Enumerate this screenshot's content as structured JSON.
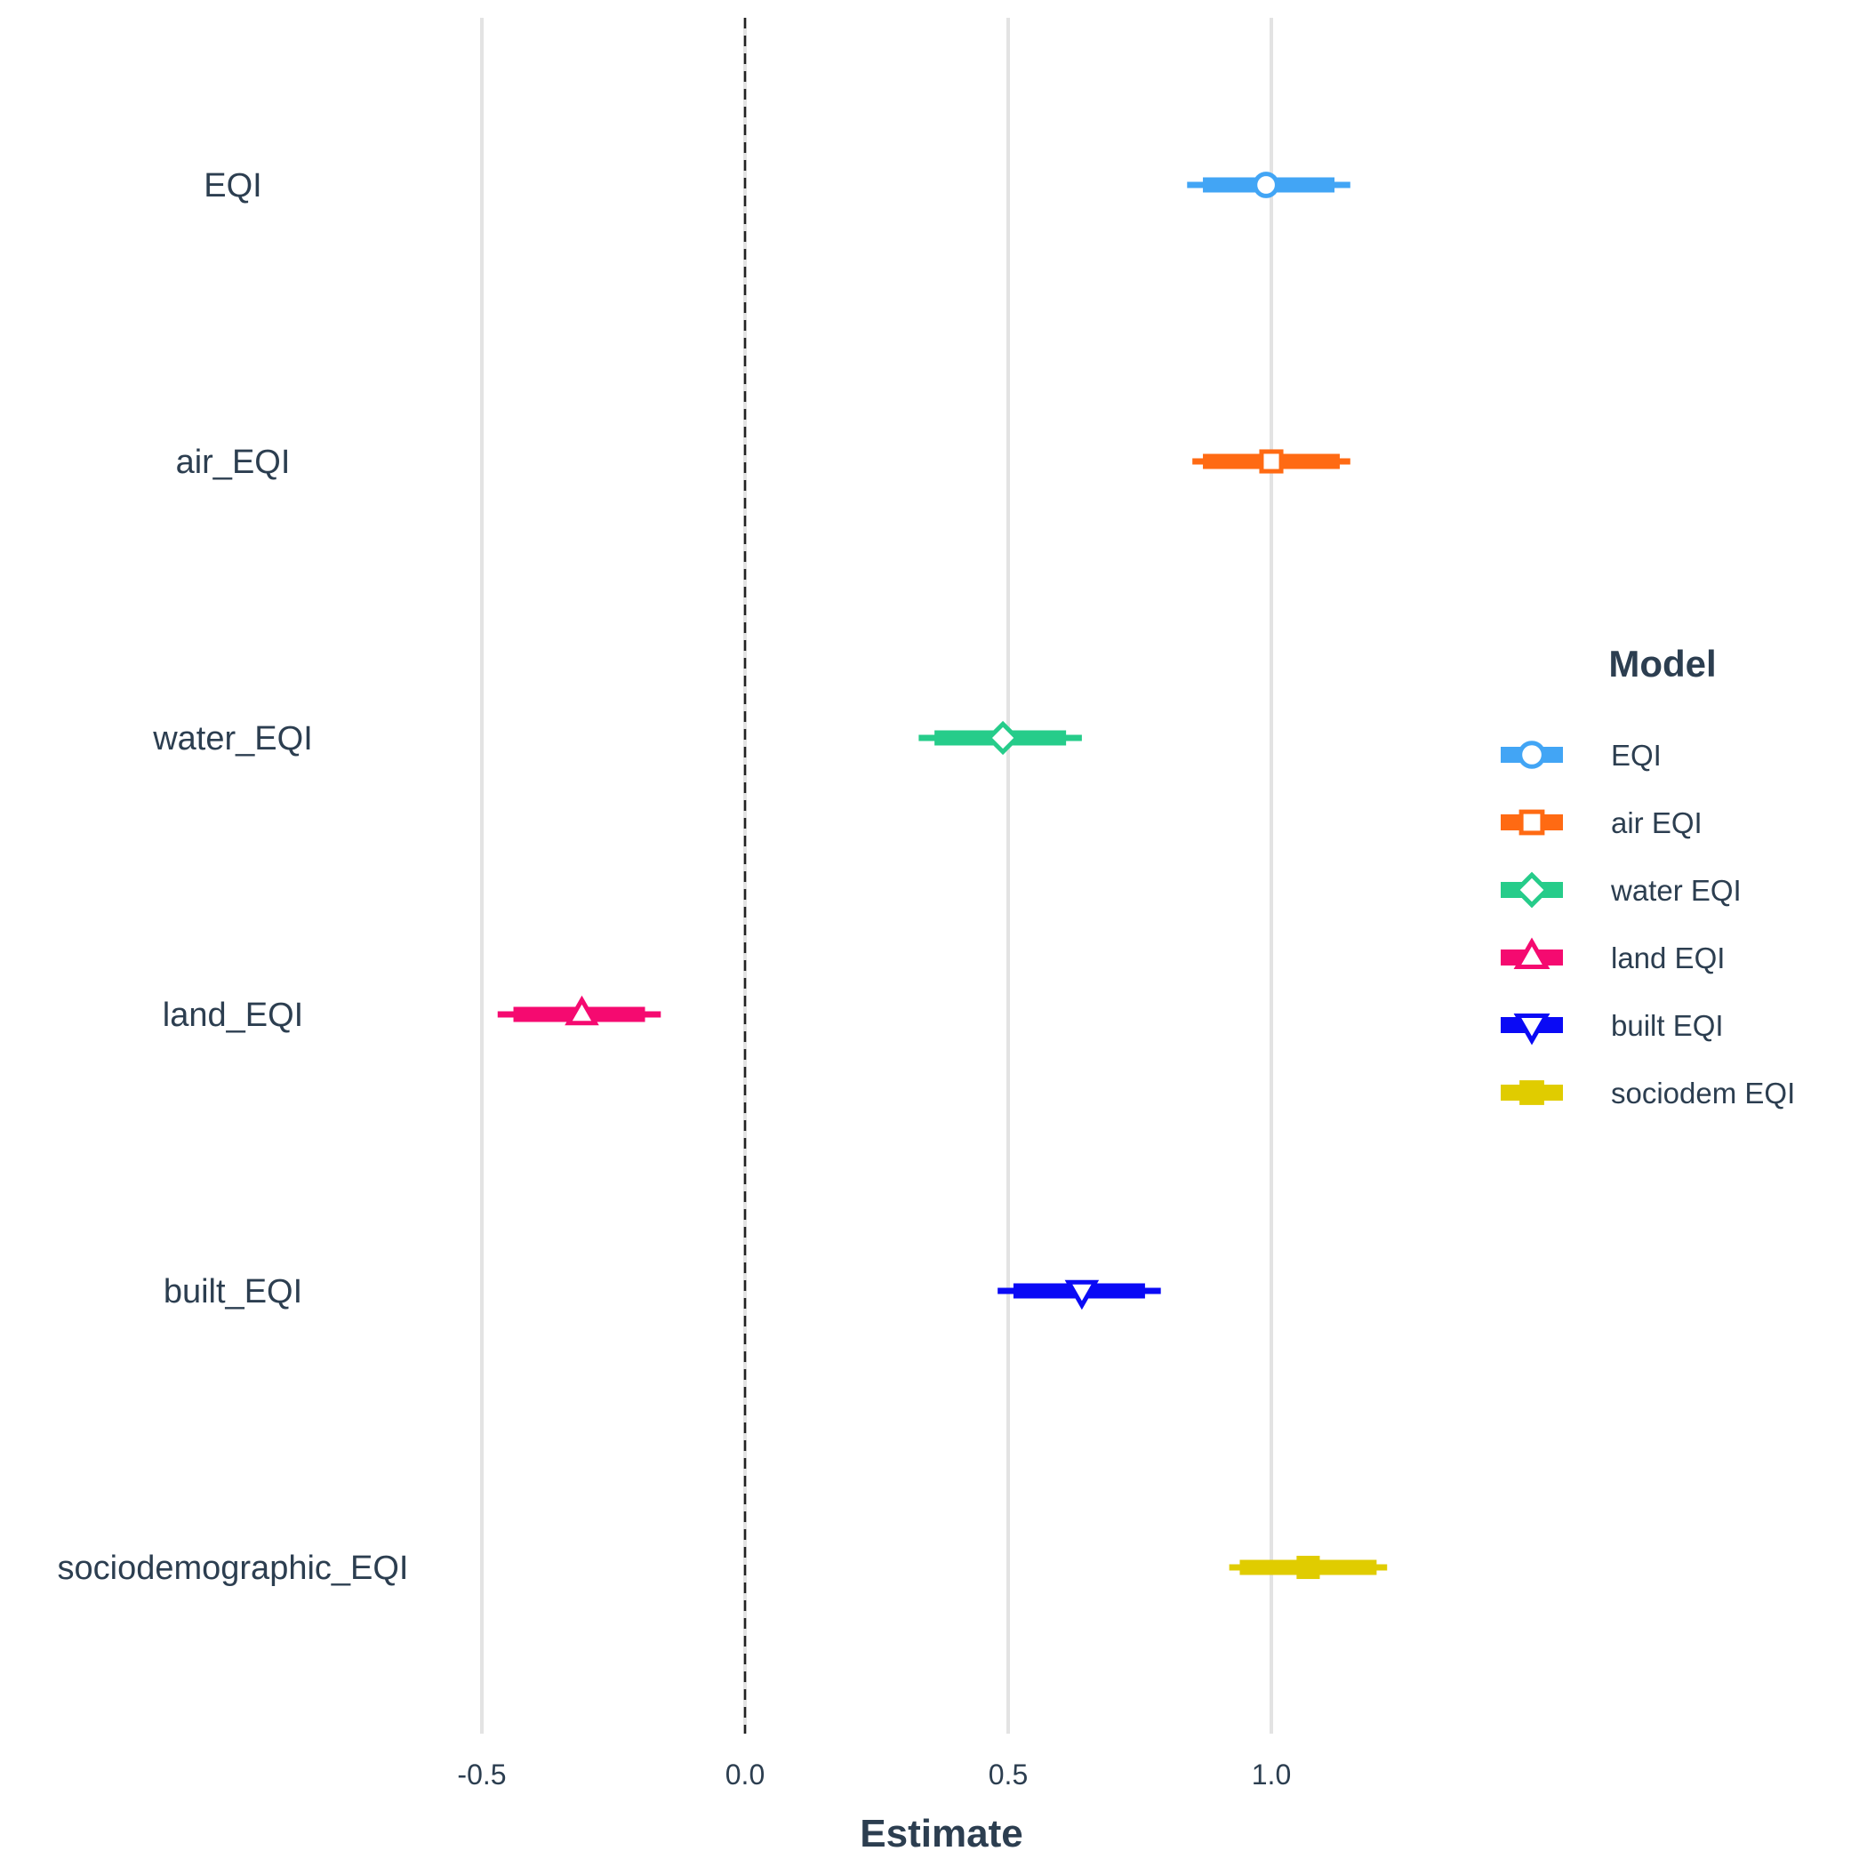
{
  "chart_data": {
    "type": "scatter",
    "xlabel": "Estimate",
    "xlim": [
      -0.6,
      1.6
    ],
    "x_ticks": [
      "-0.5",
      "0.0",
      "0.5",
      "1.0"
    ],
    "x_tick_values": [
      -0.5,
      0.0,
      0.5,
      1.0
    ],
    "reference_line": 0.0,
    "categories": [
      "EQI",
      "air_EQI",
      "water_EQI",
      "land_EQI",
      "built_EQI",
      "sociodemographic_EQI"
    ],
    "legend_title": "Model",
    "legend_position": "right",
    "series": [
      {
        "name": "EQI",
        "category": "EQI",
        "estimate": 0.99,
        "inner": [
          0.87,
          1.12
        ],
        "outer": [
          0.84,
          1.15
        ],
        "color": "#42a5f5",
        "shape": "circle"
      },
      {
        "name": "air EQI",
        "category": "air_EQI",
        "estimate": 1.0,
        "inner": [
          0.87,
          1.13
        ],
        "outer": [
          0.85,
          1.15
        ],
        "color": "#ff6a13",
        "shape": "square"
      },
      {
        "name": "water EQI",
        "category": "water_EQI",
        "estimate": 0.49,
        "inner": [
          0.36,
          0.61
        ],
        "outer": [
          0.33,
          0.64
        ],
        "color": "#26cc8a",
        "shape": "diamond"
      },
      {
        "name": "land EQI",
        "category": "land_EQI",
        "estimate": -0.31,
        "inner": [
          -0.44,
          -0.19
        ],
        "outer": [
          -0.47,
          -0.16
        ],
        "color": "#f50a70",
        "shape": "triangle-up"
      },
      {
        "name": "built EQI",
        "category": "built_EQI",
        "estimate": 0.64,
        "inner": [
          0.51,
          0.76
        ],
        "outer": [
          0.48,
          0.79
        ],
        "color": "#0a0af5",
        "shape": "triangle-down"
      },
      {
        "name": "sociodem EQI",
        "category": "sociodemographic_EQI",
        "estimate": 1.07,
        "inner": [
          0.94,
          1.2
        ],
        "outer": [
          0.92,
          1.22
        ],
        "color": "#e0cc00",
        "shape": "square-filled"
      }
    ]
  }
}
